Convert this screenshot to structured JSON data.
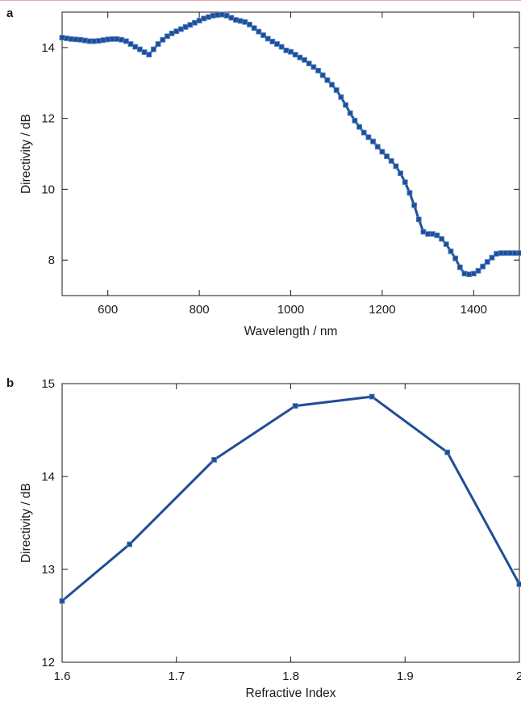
{
  "page": {
    "accent_color": "#e7a9a9"
  },
  "chart_data": [
    {
      "panel_label": "a",
      "type": "line",
      "xlabel": "Wavelength / nm",
      "ylabel": "Directivity / dB",
      "xlim": [
        500,
        1500
      ],
      "ylim": [
        7,
        15
      ],
      "xticks": [
        600,
        800,
        1000,
        1200,
        1400
      ],
      "yticks": [
        8,
        10,
        12,
        14
      ],
      "grid": false,
      "line_color": "#1f4e96",
      "marker": "square",
      "series": [
        {
          "x": [
            500,
            510,
            520,
            530,
            540,
            550,
            560,
            570,
            580,
            590,
            600,
            610,
            620,
            630,
            640,
            650,
            660,
            670,
            680,
            690,
            700,
            710,
            720,
            730,
            740,
            750,
            760,
            770,
            780,
            790,
            800,
            810,
            820,
            830,
            840,
            850,
            860,
            870,
            880,
            890,
            900,
            910,
            920,
            930,
            940,
            950,
            960,
            970,
            980,
            990,
            1000,
            1010,
            1020,
            1030,
            1040,
            1050,
            1060,
            1070,
            1080,
            1090,
            1100,
            1110,
            1120,
            1130,
            1140,
            1150,
            1160,
            1170,
            1180,
            1190,
            1200,
            1210,
            1220,
            1230,
            1240,
            1250,
            1260,
            1270,
            1280,
            1290,
            1300,
            1310,
            1320,
            1330,
            1340,
            1350,
            1360,
            1370,
            1380,
            1390,
            1400,
            1410,
            1420,
            1430,
            1440,
            1450,
            1460,
            1470,
            1480,
            1490,
            1500
          ],
          "y": [
            14.28,
            14.26,
            14.24,
            14.23,
            14.22,
            14.2,
            14.18,
            14.18,
            14.19,
            14.21,
            14.23,
            14.24,
            14.24,
            14.22,
            14.18,
            14.1,
            14.02,
            13.95,
            13.87,
            13.8,
            13.95,
            14.1,
            14.22,
            14.32,
            14.4,
            14.46,
            14.52,
            14.58,
            14.64,
            14.7,
            14.76,
            14.82,
            14.86,
            14.9,
            14.92,
            14.93,
            14.9,
            14.84,
            14.78,
            14.75,
            14.72,
            14.65,
            14.55,
            14.45,
            14.35,
            14.25,
            14.17,
            14.1,
            14.02,
            13.92,
            13.88,
            13.8,
            13.72,
            13.65,
            13.55,
            13.45,
            13.35,
            13.22,
            13.08,
            12.95,
            12.8,
            12.6,
            12.38,
            12.15,
            11.94,
            11.76,
            11.6,
            11.47,
            11.35,
            11.2,
            11.06,
            10.93,
            10.8,
            10.65,
            10.45,
            10.2,
            9.9,
            9.55,
            9.15,
            8.8,
            8.74,
            8.74,
            8.7,
            8.6,
            8.45,
            8.25,
            8.05,
            7.8,
            7.62,
            7.6,
            7.62,
            7.7,
            7.82,
            7.95,
            8.07,
            8.18,
            8.2,
            8.2,
            8.2,
            8.2,
            8.2
          ]
        }
      ]
    },
    {
      "panel_label": "b",
      "type": "line",
      "xlabel": "Refractive Index",
      "ylabel": "Directivity / dB",
      "xlim": [
        1.6,
        2.0
      ],
      "ylim": [
        12,
        15
      ],
      "xticks": [
        1.6,
        1.7,
        1.8,
        1.9,
        2
      ],
      "yticks": [
        12,
        13,
        14,
        15
      ],
      "grid": false,
      "line_color": "#1f4e96",
      "marker": "square",
      "series": [
        {
          "x": [
            1.6,
            1.659,
            1.733,
            1.804,
            1.871,
            1.937,
            2.0
          ],
          "y": [
            12.66,
            13.27,
            14.18,
            14.76,
            14.86,
            14.26,
            12.84
          ]
        }
      ]
    }
  ]
}
